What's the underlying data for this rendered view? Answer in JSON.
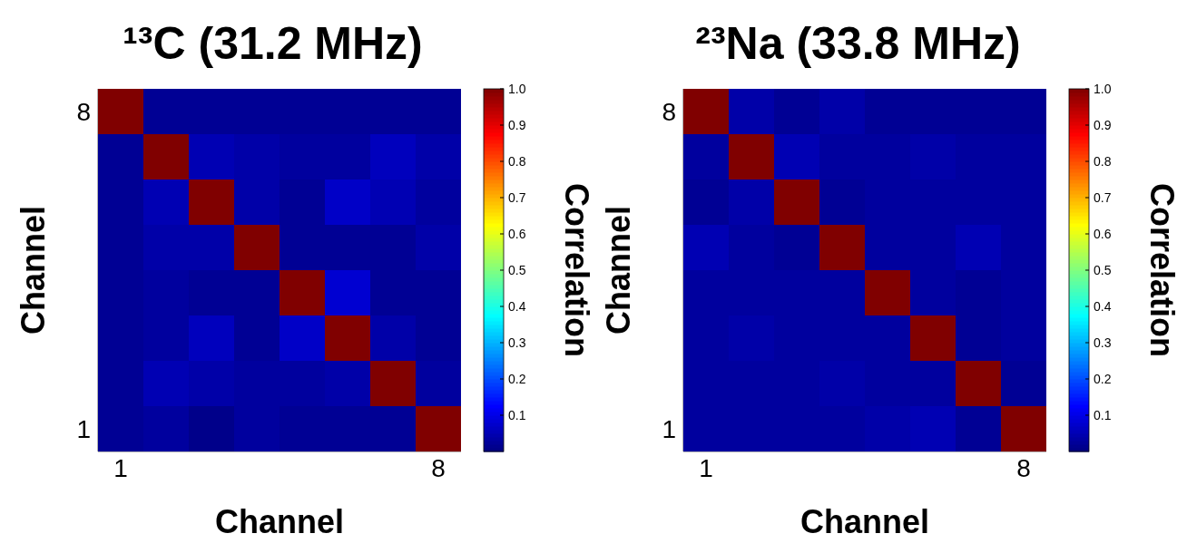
{
  "chart_data": [
    {
      "type": "heatmap",
      "title": "¹³C (31.2 MHz)",
      "xlabel": "Channel",
      "ylabel": "Channel",
      "clabel": "Correlation",
      "categories": [
        "1",
        null,
        null,
        null,
        null,
        null,
        null,
        "8"
      ],
      "y_categories": [
        "8",
        null,
        null,
        null,
        null,
        null,
        null,
        "1"
      ],
      "cells": [
        [
          1,
          0.02,
          0.02,
          0.02,
          0.02,
          0.02,
          0.02,
          0.02
        ],
        [
          0.02,
          1,
          0.05,
          0.04,
          0.03,
          0.03,
          0.06,
          0.04
        ],
        [
          0.02,
          0.05,
          1,
          0.04,
          0.02,
          0.07,
          0.05,
          0.03
        ],
        [
          0.02,
          0.04,
          0.04,
          1,
          0.02,
          0.02,
          0.02,
          0.04
        ],
        [
          0.02,
          0.03,
          0.02,
          0.02,
          1,
          0.08,
          0.02,
          0.02
        ],
        [
          0.02,
          0.03,
          0.06,
          0.02,
          0.07,
          1,
          0.04,
          0.02
        ],
        [
          0.02,
          0.05,
          0.04,
          0.03,
          0.03,
          0.04,
          1,
          0.03
        ],
        [
          0.02,
          0.03,
          0.01,
          0.03,
          0.02,
          0.02,
          0.02,
          1
        ]
      ],
      "clim": [
        0,
        1
      ],
      "cticks": [
        0.1,
        0.2,
        0.3,
        0.4,
        0.5,
        0.6,
        0.7,
        0.8,
        0.9,
        {
          "value": 1,
          "label": "1.0"
        }
      ]
    },
    {
      "type": "heatmap",
      "title": "²³Na (33.8 MHz)",
      "xlabel": "Channel",
      "ylabel": "Channel",
      "clabel": "Correlation",
      "categories": [
        "1",
        null,
        null,
        null,
        null,
        null,
        null,
        "8"
      ],
      "y_categories": [
        "8",
        null,
        null,
        null,
        null,
        null,
        null,
        "1"
      ],
      "cells": [
        [
          1,
          0.04,
          0.02,
          0.04,
          0.02,
          0.02,
          0.02,
          0.02
        ],
        [
          0.03,
          1,
          0.05,
          0.03,
          0.03,
          0.04,
          0.03,
          0.03
        ],
        [
          0.02,
          0.04,
          1,
          0.02,
          0.03,
          0.03,
          0.03,
          0.03
        ],
        [
          0.05,
          0.03,
          0.02,
          1,
          0.03,
          0.03,
          0.05,
          0.03
        ],
        [
          0.03,
          0.03,
          0.03,
          0.03,
          1,
          0.03,
          0.02,
          0.03
        ],
        [
          0.03,
          0.04,
          0.03,
          0.03,
          0.03,
          1,
          0.02,
          0.03
        ],
        [
          0.03,
          0.03,
          0.03,
          0.04,
          0.03,
          0.03,
          1,
          0.02
        ],
        [
          0.03,
          0.03,
          0.03,
          0.03,
          0.04,
          0.05,
          0.02,
          1
        ]
      ],
      "clim": [
        0,
        1
      ],
      "cticks": [
        0.1,
        0.2,
        0.3,
        0.4,
        0.5,
        0.6,
        0.7,
        0.8,
        0.9,
        {
          "value": 1,
          "label": "1.0"
        }
      ]
    }
  ]
}
